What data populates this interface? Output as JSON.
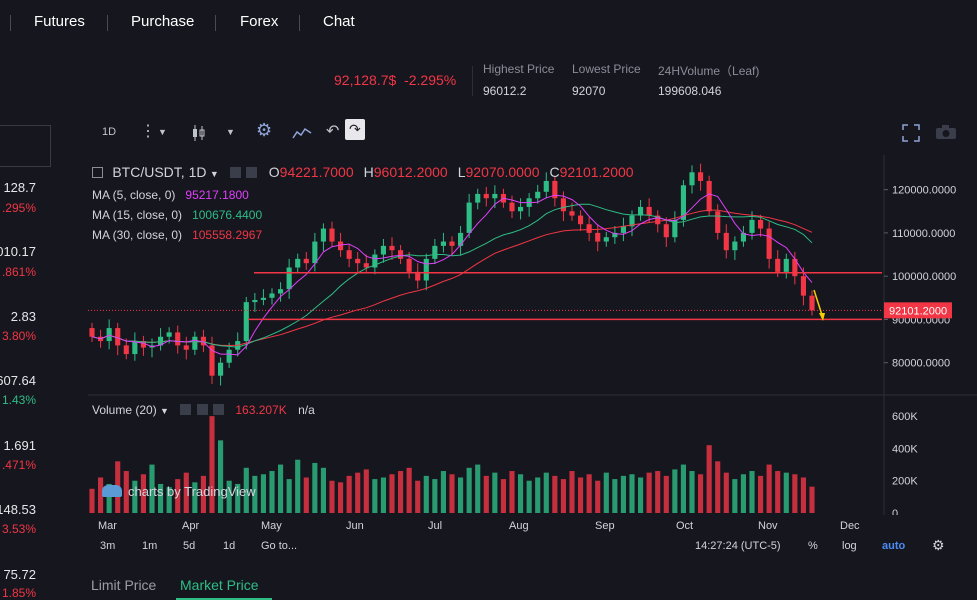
{
  "nav": {
    "items": [
      "Futures",
      "Purchase",
      "Forex",
      "Chat"
    ]
  },
  "ticker": {
    "price": "92,128.7$",
    "change": "-2.295%",
    "stats": [
      {
        "label": "Highest Price",
        "value": "96012.2"
      },
      {
        "label": "Lowest Price",
        "value": "92070"
      },
      {
        "label": "24HVolume（Leaf)",
        "value": "199608.046"
      }
    ]
  },
  "left_list": [
    {
      "value": "128.7",
      "pct": ".295%",
      "color": "red"
    },
    {
      "value": "010.17",
      "pct": ".861%",
      "color": "red"
    },
    {
      "value": "2.83",
      "pct": "3.80%",
      "color": "red"
    },
    {
      "value": "607.64",
      "pct": "1.43%",
      "color": "green"
    },
    {
      "value": "1.691",
      "pct": ".471%",
      "color": "red"
    },
    {
      "value": "148.53",
      "pct": "3.53%",
      "color": "red"
    },
    {
      "value": "75.72",
      "pct": "1.85%",
      "color": "red"
    }
  ],
  "toolbar": {
    "interval": "1D"
  },
  "legend": {
    "symbol": "BTC/USDT, 1D",
    "ohlc": [
      {
        "key": "O",
        "value": "94221.7000"
      },
      {
        "key": "H",
        "value": "96012.2000"
      },
      {
        "key": "L",
        "value": "92070.0000"
      },
      {
        "key": "C",
        "value": "92101.2000"
      }
    ],
    "ma": [
      {
        "label": "MA (5, close, 0)",
        "value": "95217.1800",
        "color": "#e040fb"
      },
      {
        "label": "MA (15, close, 0)",
        "value": "100676.4400",
        "color": "#2ebd85"
      },
      {
        "label": "MA (30, close, 0)",
        "value": "105558.2967",
        "color": "#f23645"
      }
    ],
    "volume_label": "Volume (20)",
    "volume_value": "163.207K",
    "volume_extra": "n/a"
  },
  "colors": {
    "up": "#2ebd85",
    "down": "#f23645",
    "accent": "#f23645",
    "background": "#16161e"
  },
  "chart_data": {
    "type": "candlestick",
    "symbol": "BTC/USDT",
    "interval": "1D",
    "x_ticks": [
      "Mar",
      "Apr",
      "May",
      "Jun",
      "Jul",
      "Aug",
      "Sep",
      "Oct",
      "Nov",
      "Dec"
    ],
    "price_ticks": [
      "120000.0000",
      "110000.0000",
      "100000.0000",
      "90000.0000",
      "80000.0000"
    ],
    "ylim": [
      73000,
      128000
    ],
    "volume_ticks": [
      "600K",
      "400K",
      "200K",
      "0"
    ],
    "volume_ylim": [
      0,
      700
    ],
    "last_price_label": "92101.2000",
    "horizontal_levels": [
      100800,
      90000
    ],
    "closes": [
      86000,
      85000,
      88000,
      84000,
      82000,
      85000,
      83500,
      84000,
      86000,
      87000,
      84000,
      83000,
      86000,
      84000,
      77000,
      80000,
      83000,
      85000,
      94000,
      94500,
      95000,
      96000,
      97000,
      102000,
      104000,
      103000,
      108000,
      111000,
      108000,
      106000,
      104000,
      103000,
      102000,
      105000,
      107000,
      106000,
      104000,
      101000,
      99000,
      104000,
      107000,
      108000,
      107000,
      110000,
      117000,
      119000,
      118000,
      119000,
      117000,
      115000,
      116000,
      118000,
      119500,
      122000,
      118000,
      115000,
      114000,
      112000,
      110000,
      108000,
      109000,
      110000,
      111500,
      114000,
      116000,
      114000,
      112000,
      109000,
      113000,
      121000,
      124000,
      122000,
      115000,
      110000,
      106000,
      108000,
      110000,
      113000,
      111000,
      104000,
      101000,
      104000,
      100000,
      95500,
      92100
    ],
    "volumes": [
      150,
      220,
      180,
      320,
      260,
      200,
      240,
      300,
      180,
      160,
      210,
      250,
      190,
      230,
      600,
      450,
      200,
      180,
      280,
      230,
      240,
      260,
      300,
      210,
      330,
      220,
      310,
      280,
      200,
      190,
      230,
      250,
      270,
      210,
      220,
      240,
      260,
      280,
      200,
      230,
      210,
      260,
      240,
      220,
      280,
      300,
      230,
      250,
      210,
      260,
      240,
      200,
      220,
      250,
      230,
      210,
      260,
      220,
      240,
      200,
      250,
      210,
      230,
      240,
      220,
      250,
      260,
      230,
      270,
      300,
      260,
      240,
      420,
      320,
      250,
      210,
      240,
      260,
      230,
      300,
      260,
      250,
      240,
      220,
      163
    ]
  },
  "x_labels": [
    "Mar",
    "Apr",
    "May",
    "Jun",
    "Jul",
    "Aug",
    "Sep",
    "Oct",
    "Nov",
    "Dec"
  ],
  "bottom_bar": {
    "ranges": [
      "3m",
      "1m",
      "5d",
      "1d"
    ],
    "goto": "Go to...",
    "time": "14:27:24 (UTC-5)",
    "options": [
      "%",
      "log",
      "auto"
    ]
  },
  "watermark": "charts by TradingView",
  "tabs": [
    "Limit Price",
    "Market Price"
  ]
}
